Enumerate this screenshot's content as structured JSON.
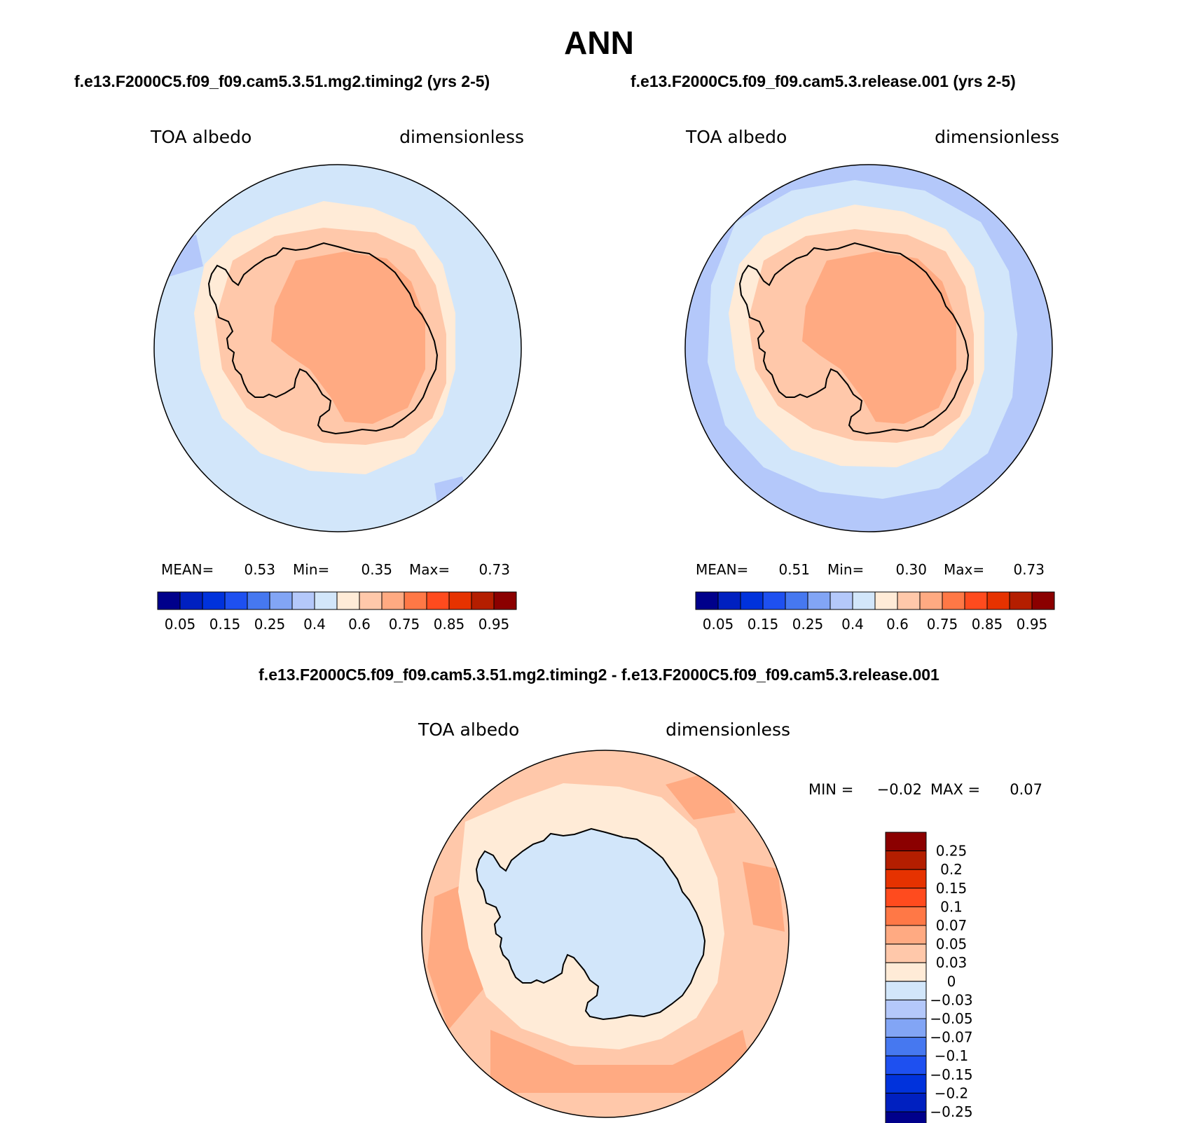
{
  "title": "ANN",
  "panels": [
    {
      "run": "f.e13.F2000C5.f09_f09.cam5.3.51.mg2.timing2 (yrs 2-5)",
      "variable": "TOA albedo",
      "units": "dimensionless",
      "stats": {
        "mean_label": "MEAN=",
        "mean": "0.53",
        "min_label": "Min=",
        "min": "0.35",
        "max_label": "Max=",
        "max": "0.73"
      }
    },
    {
      "run": "f.e13.F2000C5.f09_f09.cam5.3.release.001 (yrs 2-5)",
      "variable": "TOA albedo",
      "units": "dimensionless",
      "stats": {
        "mean_label": "MEAN=",
        "mean": "0.51",
        "min_label": "Min=",
        "min": "0.30",
        "max_label": "Max=",
        "max": "0.73"
      }
    }
  ],
  "abs_colorbar": {
    "colors": [
      "#00008b",
      "#0020c0",
      "#0032dc",
      "#1e50f0",
      "#4678f0",
      "#82a5f5",
      "#b4c8fa",
      "#d2e6fa",
      "#ffebd7",
      "#ffc8aa",
      "#ffaa82",
      "#ff7846",
      "#ff4b1e",
      "#e63200",
      "#b41e00",
      "#8b0000"
    ],
    "tick_labels": [
      "0.05",
      "0.15",
      "0.25",
      "0.4",
      "0.6",
      "0.75",
      "0.85",
      "0.95"
    ]
  },
  "diff": {
    "run": "f.e13.F2000C5.f09_f09.cam5.3.51.mg2.timing2 - f.e13.F2000C5.f09_f09.cam5.3.release.001",
    "variable": "TOA albedo",
    "units": "dimensionless",
    "min_label": "MIN =",
    "min": "−0.02",
    "max_label": "MAX =",
    "max": "0.07"
  },
  "diff_colorbar": {
    "colors": [
      "#8b0000",
      "#b41e00",
      "#e63200",
      "#ff4b1e",
      "#ff7846",
      "#ffaa82",
      "#ffc8aa",
      "#ffebd7",
      "#d2e6fa",
      "#b4c8fa",
      "#82a5f5",
      "#4678f0",
      "#1e50f0",
      "#0032dc",
      "#0020c0",
      "#00008b"
    ],
    "tick_labels": [
      "0.25",
      "0.2",
      "0.15",
      "0.1",
      "0.07",
      "0.05",
      "0.03",
      "0",
      "−0.03",
      "−0.05",
      "−0.07",
      "−0.1",
      "−0.15",
      "−0.2",
      "−0.25"
    ]
  },
  "fills": {
    "ocean_a": "#d2e6fa",
    "ocean_b": "#b4c8fa",
    "low": "#82a5f5",
    "ring": "#ffebd7",
    "shelf": "#ffc8aa",
    "interior": "#ffaa82",
    "diff_ocean": "#ffc8aa",
    "diff_ring": "#ffaa82",
    "diff_shelf": "#ffebd7",
    "diff_land": "#d2e6fa"
  }
}
